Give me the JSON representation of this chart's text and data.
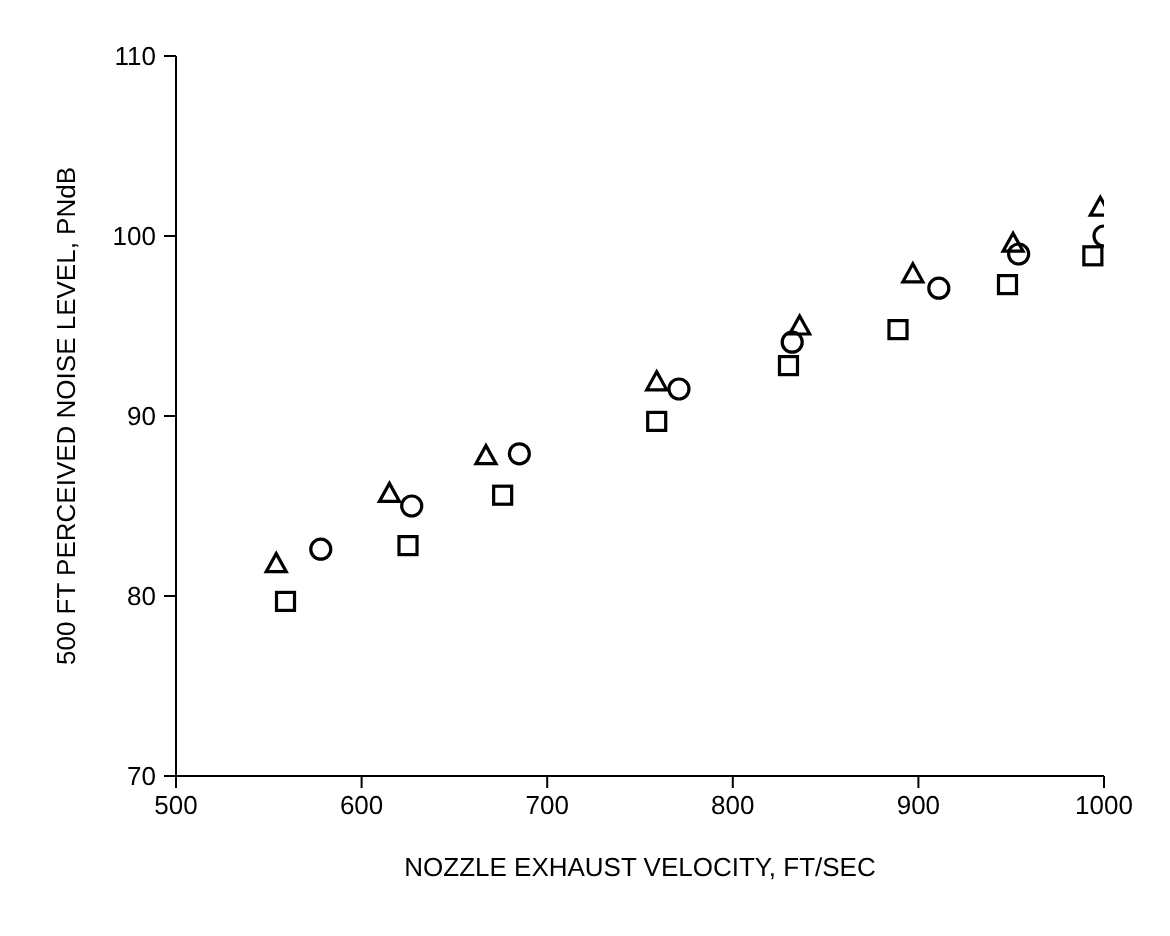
{
  "chart_data": {
    "type": "scatter",
    "xlabel": "NOZZLE EXHAUST VELOCITY, FT/SEC",
    "ylabel": "500 FT PERCEIVED NOISE LEVEL, PNdB",
    "xlim": [
      500,
      1000
    ],
    "xticks": [
      500,
      600,
      700,
      800,
      900,
      1000
    ],
    "ylim": [
      70,
      110
    ],
    "yticks": [
      70,
      80,
      90,
      100,
      110
    ],
    "grid": false,
    "legend": false,
    "series": [
      {
        "color": "#000000",
        "marker": "triangle",
        "x": [
          554,
          615,
          667,
          759,
          836,
          897,
          951,
          998
        ],
        "values": [
          81.8,
          85.7,
          87.8,
          91.9,
          95.0,
          97.9,
          99.6,
          101.6
        ]
      },
      {
        "color": "#000000",
        "marker": "circle",
        "x": [
          578,
          627,
          685,
          771,
          832,
          911,
          954,
          1000
        ],
        "values": [
          82.6,
          85.0,
          87.9,
          91.5,
          94.1,
          97.1,
          99.0,
          100.0
        ]
      },
      {
        "color": "#000000",
        "marker": "square",
        "x": [
          559,
          625,
          676,
          759,
          830,
          889,
          948,
          994
        ],
        "values": [
          79.7,
          82.8,
          85.6,
          89.7,
          92.8,
          94.8,
          97.3,
          98.9
        ]
      }
    ]
  }
}
